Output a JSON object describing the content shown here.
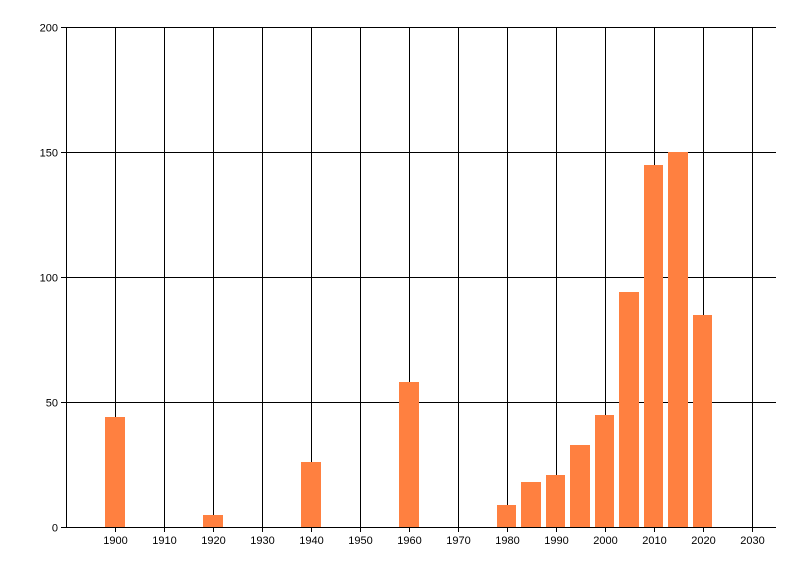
{
  "chart_data": {
    "type": "bar",
    "title": "",
    "xlabel": "",
    "ylabel": "",
    "x": [
      1900,
      1920,
      1940,
      1960,
      1980,
      1985,
      1990,
      1995,
      2000,
      2005,
      2010,
      2015,
      2020
    ],
    "values": [
      44,
      5,
      26,
      58,
      9,
      18,
      21,
      33,
      45,
      94,
      145,
      150,
      85
    ],
    "xlim": [
      1890,
      2035
    ],
    "ylim": [
      0,
      200
    ],
    "x_ticks": [
      "1900",
      "1910",
      "1920",
      "1930",
      "1940",
      "1950",
      "1960",
      "1970",
      "1980",
      "1990",
      "2000",
      "2010",
      "2020",
      "2030"
    ],
    "y_ticks": [
      "0",
      "50",
      "100",
      "150",
      "200"
    ],
    "grid": true,
    "bar_color": "#ff8040",
    "bar_width_years": 4
  }
}
